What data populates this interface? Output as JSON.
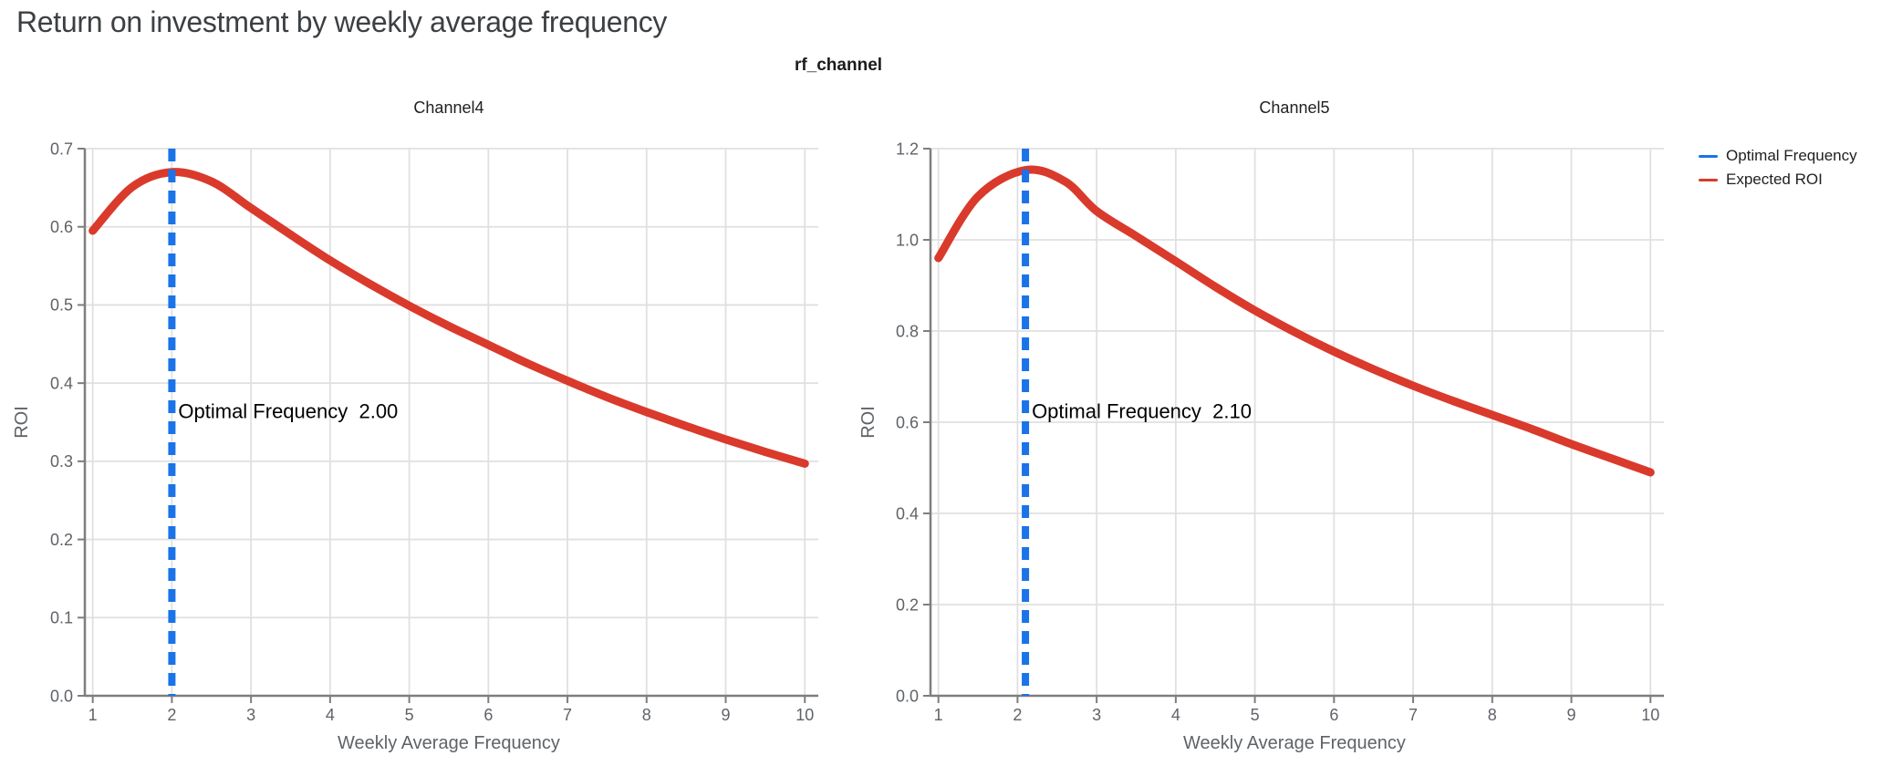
{
  "page": {
    "title": "Return on investment by weekly average frequency",
    "facet_title": "rf_channel"
  },
  "colors": {
    "optimal_blue": "#1a73e8",
    "roi_red": "#d93a2b",
    "grid": "#e0e0e0",
    "axis": "#7e7e7e",
    "tick_label": "#5f6368",
    "axis_title": "#5f6368",
    "panel_title": "#202124",
    "annotation": "#000000",
    "header": "#3c4043"
  },
  "legend": {
    "items": [
      {
        "label": "Optimal Frequency",
        "color": "#1a73e8",
        "swatch": "line"
      },
      {
        "label": "Expected ROI",
        "color": "#d93a2b",
        "swatch": "line"
      }
    ]
  },
  "chart_data": [
    {
      "type": "line",
      "title": "Channel4",
      "xlabel": "Weekly Average Frequency",
      "ylabel": "ROI",
      "xlim": [
        0.9,
        10.17
      ],
      "ylim": [
        0.0,
        0.7
      ],
      "xticks": [
        1,
        2,
        3,
        4,
        5,
        6,
        7,
        8,
        9,
        10
      ],
      "yticks": [
        0.0,
        0.1,
        0.2,
        0.3,
        0.4,
        0.5,
        0.6,
        0.7
      ],
      "ytick_labels": [
        "0.0",
        "0.1",
        "0.2",
        "0.3",
        "0.4",
        "0.5",
        "0.6",
        "0.7"
      ],
      "grid": true,
      "legend_position": "top-right-outside",
      "optimal_frequency": 2.0,
      "annotation_label": "Optimal Frequency  2.00",
      "series": [
        {
          "name": "Expected ROI",
          "x": [
            1.0,
            1.5,
            2.0,
            2.5,
            3.0,
            3.5,
            4.0,
            4.5,
            5.0,
            5.5,
            6.0,
            6.5,
            7.0,
            7.5,
            8.0,
            8.5,
            9.0,
            9.5,
            10.0
          ],
          "y": [
            0.595,
            0.651,
            0.67,
            0.658,
            0.624,
            0.59,
            0.557,
            0.527,
            0.499,
            0.473,
            0.449,
            0.425,
            0.403,
            0.382,
            0.363,
            0.345,
            0.328,
            0.312,
            0.297
          ]
        }
      ]
    },
    {
      "type": "line",
      "title": "Channel5",
      "xlabel": "Weekly Average Frequency",
      "ylabel": "ROI",
      "xlim": [
        0.9,
        10.17
      ],
      "ylim": [
        0.0,
        1.2
      ],
      "xticks": [
        1,
        2,
        3,
        4,
        5,
        6,
        7,
        8,
        9,
        10
      ],
      "yticks": [
        0.0,
        0.2,
        0.4,
        0.6,
        0.8,
        1.0,
        1.2
      ],
      "ytick_labels": [
        "0.0",
        "0.2",
        "0.4",
        "0.6",
        "0.8",
        "1.0",
        "1.2"
      ],
      "grid": true,
      "legend_position": "top-right-outside",
      "optimal_frequency": 2.1,
      "annotation_label": "Optimal Frequency  2.10",
      "series": [
        {
          "name": "Expected ROI",
          "x": [
            1.0,
            1.5,
            2.1,
            2.6,
            3.0,
            3.5,
            4.0,
            4.5,
            5.0,
            5.5,
            6.0,
            6.5,
            7.0,
            7.5,
            8.0,
            8.5,
            9.0,
            9.5,
            10.0
          ],
          "y": [
            0.96,
            1.095,
            1.153,
            1.128,
            1.063,
            1.008,
            0.953,
            0.897,
            0.845,
            0.798,
            0.755,
            0.716,
            0.68,
            0.647,
            0.616,
            0.585,
            0.552,
            0.521,
            0.49
          ]
        }
      ]
    }
  ]
}
